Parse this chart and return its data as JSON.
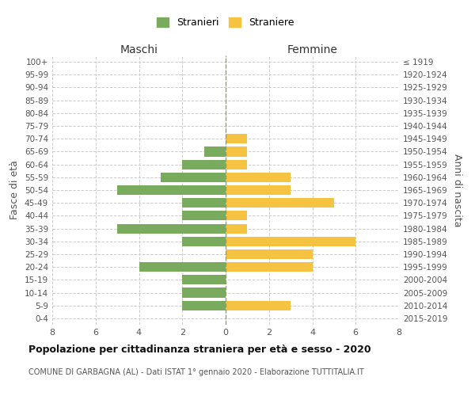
{
  "age_groups": [
    "100+",
    "95-99",
    "90-94",
    "85-89",
    "80-84",
    "75-79",
    "70-74",
    "65-69",
    "60-64",
    "55-59",
    "50-54",
    "45-49",
    "40-44",
    "35-39",
    "30-34",
    "25-29",
    "20-24",
    "15-19",
    "10-14",
    "5-9",
    "0-4"
  ],
  "birth_years": [
    "≤ 1919",
    "1920-1924",
    "1925-1929",
    "1930-1934",
    "1935-1939",
    "1940-1944",
    "1945-1949",
    "1950-1954",
    "1955-1959",
    "1960-1964",
    "1965-1969",
    "1970-1974",
    "1975-1979",
    "1980-1984",
    "1985-1989",
    "1990-1994",
    "1995-1999",
    "2000-2004",
    "2005-2009",
    "2010-2014",
    "2015-2019"
  ],
  "males": [
    0,
    0,
    0,
    0,
    0,
    0,
    0,
    1,
    2,
    3,
    5,
    2,
    2,
    5,
    2,
    0,
    4,
    2,
    2,
    2,
    0
  ],
  "females": [
    0,
    0,
    0,
    0,
    0,
    0,
    1,
    1,
    1,
    3,
    3,
    5,
    1,
    1,
    6,
    4,
    4,
    0,
    0,
    3,
    0
  ],
  "male_color": "#7aaa5e",
  "female_color": "#f5c242",
  "background_color": "#ffffff",
  "grid_color": "#cccccc",
  "title": "Popolazione per cittadinanza straniera per età e sesso - 2020",
  "subtitle": "COMUNE DI GARBAGNA (AL) - Dati ISTAT 1° gennaio 2020 - Elaborazione TUTTITALIA.IT",
  "ylabel_left": "Fasce di età",
  "ylabel_right": "Anni di nascita",
  "xlabel_maschi": "Maschi",
  "xlabel_femmine": "Femmine",
  "legend_male": "Stranieri",
  "legend_female": "Straniere",
  "xlim": 8,
  "tick_positions": [
    0,
    2,
    4,
    6,
    8
  ]
}
